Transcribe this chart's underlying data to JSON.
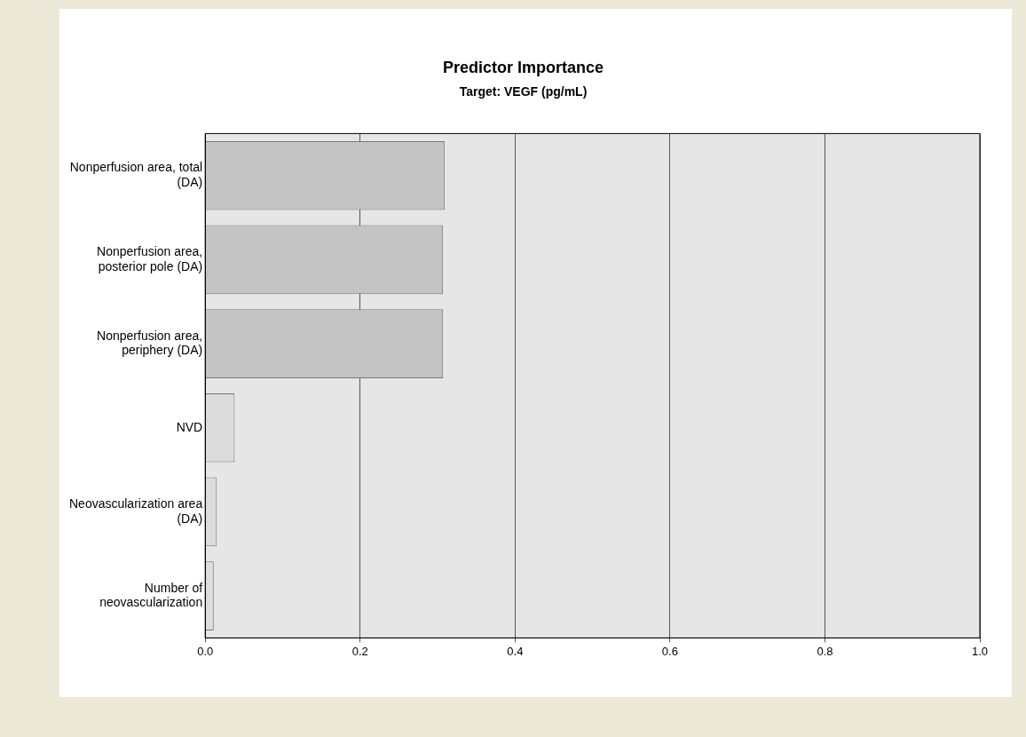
{
  "chart_data": {
    "type": "bar",
    "orientation": "horizontal",
    "title": "Predictor Importance",
    "subtitle": "Target: VEGF (pg/mL)",
    "categories": [
      "Nonperfusion area, total (DA)",
      "Nonperfusion area, posterior pole (DA)",
      "Nonperfusion area, periphery (DA)",
      "NVD",
      "Neovascularization area (DA)",
      "Number of neovascularization"
    ],
    "values": [
      0.309,
      0.307,
      0.307,
      0.038,
      0.015,
      0.011
    ],
    "colors": [
      "#c4c4c4",
      "#c4c4c4",
      "#c4c4c4",
      "#dcdcdc",
      "#dcdcdc",
      "#dcdcdc"
    ],
    "xlim": [
      0,
      1
    ],
    "xticks": [
      {
        "value": 0,
        "label": "0.0"
      },
      {
        "value": 0.2,
        "label": "0.2"
      },
      {
        "value": 0.4,
        "label": "0.4"
      },
      {
        "value": 0.6,
        "label": "0.6"
      },
      {
        "value": 0.8,
        "label": "0.8"
      },
      {
        "value": 1,
        "label": "1.0"
      }
    ],
    "grid": "x",
    "legend": false
  }
}
